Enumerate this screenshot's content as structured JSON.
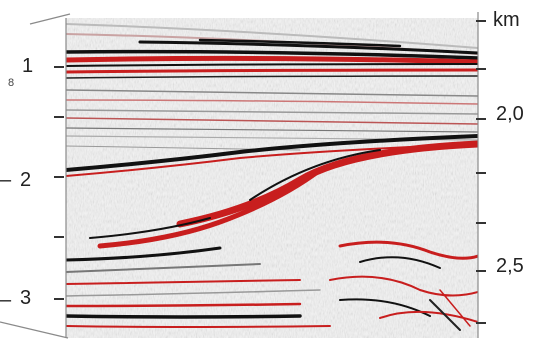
{
  "figure": {
    "left_axis": {
      "marker": "8",
      "labels": [
        "1",
        "2",
        "3"
      ],
      "dash_labels": [
        "–",
        "–"
      ]
    },
    "right_axis": {
      "unit": "km",
      "labels": [
        "2,0",
        "2,5"
      ]
    },
    "colors": {
      "positive": "#c81e1e",
      "negative": "#111111",
      "neutral": "#d9d9d9",
      "frame": "#8a8a8a"
    }
  }
}
